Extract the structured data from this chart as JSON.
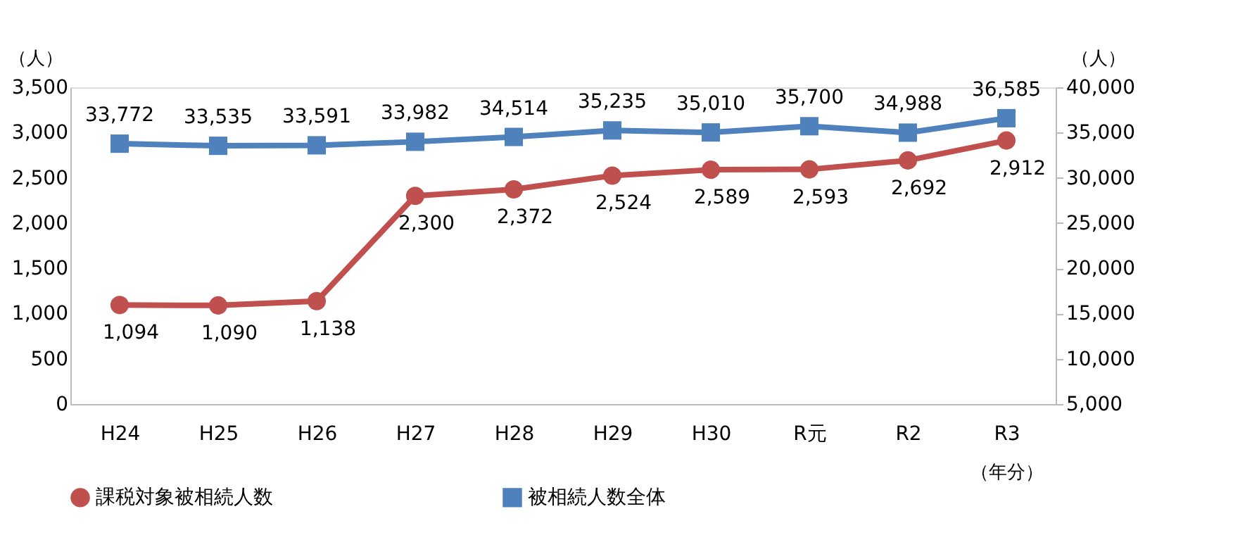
{
  "chart_data": {
    "type": "line",
    "ylabel": "（人）",
    "y2label": "（人）",
    "xlabel": "（年分）",
    "categories": [
      "H24",
      "H25",
      "H26",
      "H27",
      "H28",
      "H29",
      "H30",
      "R元",
      "R2",
      "R3"
    ],
    "series": [
      {
        "name": "課税対象被相続人数",
        "color": "#c0504d",
        "marker": "circle",
        "axis": "y",
        "values": [
          1094,
          1090,
          1138,
          2300,
          2372,
          2524,
          2589,
          2593,
          2692,
          2912
        ],
        "value_labels": [
          "1,094",
          "1,090",
          "1,138",
          "2,300",
          "2,372",
          "2,524",
          "2,589",
          "2,593",
          "2,692",
          "2,912"
        ]
      },
      {
        "name": "被相続人数全体",
        "color": "#4f81bd",
        "marker": "square",
        "axis": "y2",
        "values": [
          33772,
          33535,
          33591,
          33982,
          34514,
          35235,
          35010,
          35700,
          34988,
          36585
        ],
        "value_labels": [
          "33,772",
          "33,535",
          "33,591",
          "33,982",
          "34,514",
          "35,235",
          "35,010",
          "35,700",
          "34,988",
          "36,585"
        ]
      }
    ],
    "ylim": [
      0,
      3500
    ],
    "yticks": [
      0,
      500,
      {
        "value": 1000,
        "label": "1,000"
      },
      {
        "value": 1500,
        "label": "1,500"
      },
      {
        "value": 2000,
        "label": "2,000"
      },
      {
        "value": 2500,
        "label": "2,500"
      },
      {
        "value": 3000,
        "label": "3,000"
      },
      {
        "value": 3500,
        "label": "3,500"
      }
    ],
    "y2lim": [
      5000,
      40000
    ],
    "y2ticks": [
      {
        "value": 5000,
        "label": "5,000"
      },
      {
        "value": 10000,
        "label": "10,000"
      },
      {
        "value": 15000,
        "label": "15,000"
      },
      {
        "value": 20000,
        "label": "20,000"
      },
      {
        "value": 25000,
        "label": "25,000"
      },
      {
        "value": 30000,
        "label": "30,000"
      },
      {
        "value": 35000,
        "label": "35,000"
      },
      {
        "value": 40000,
        "label": "40,000"
      }
    ],
    "legend": "bottom",
    "grid": false
  }
}
